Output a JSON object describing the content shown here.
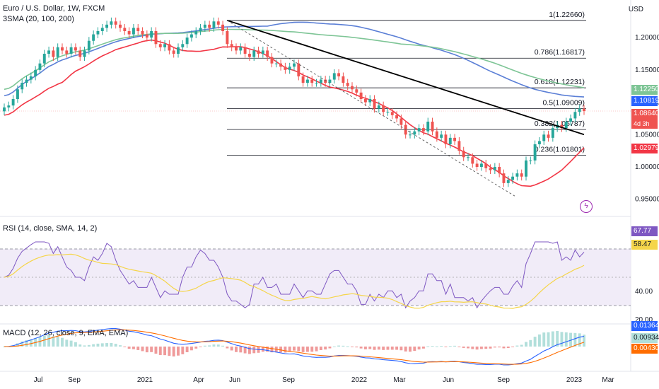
{
  "header": {
    "symbol_line": "Euro / U.S. Dollar, 1W, FXCM",
    "indicator_line": "3SMA (20, 100, 200)",
    "currency": "USD"
  },
  "rsi_legend": "RSI (14, close, SMA, 14, 2)",
  "macd_legend": "MACD (12, 26, close, 9, EMA, EMA)",
  "colors": {
    "up": "#26a69a",
    "down": "#ef5350",
    "sma20": "#f23645",
    "sma100": "#5b7fd6",
    "sma200": "#7ec596",
    "rsi": "#7e57c2",
    "rsi_ma": "#f5d54a",
    "macd": "#2962ff",
    "signal": "#ff6d00",
    "trendline": "#000000"
  },
  "chart_data": [
    {
      "type": "candlestick",
      "title": "Euro / U.S. Dollar, 1W, FXCM",
      "ylabel": "USD",
      "ylim": [
        0.93,
        1.245
      ],
      "y_ticks": [
        "1.20000",
        "1.15000",
        "1.10000",
        "1.05000",
        "1.00000",
        "0.95000"
      ],
      "x_ticks": [
        "Jul",
        "Sep",
        "2021",
        "Apr",
        "Jun",
        "Sep",
        "2022",
        "Mar",
        "Jun",
        "Sep",
        "2023",
        "Mar"
      ],
      "close_series": [
        1.092,
        1.095,
        1.105,
        1.12,
        1.13,
        1.135,
        1.14,
        1.15,
        1.16,
        1.175,
        1.18,
        1.17,
        1.185,
        1.18,
        1.175,
        1.185,
        1.18,
        1.17,
        1.18,
        1.195,
        1.205,
        1.21,
        1.215,
        1.22,
        1.225,
        1.22,
        1.215,
        1.21,
        1.205,
        1.215,
        1.21,
        1.205,
        1.2,
        1.21,
        1.19,
        1.185,
        1.19,
        1.18,
        1.175,
        1.185,
        1.19,
        1.2,
        1.205,
        1.21,
        1.215,
        1.22,
        1.215,
        1.225,
        1.22,
        1.21,
        1.19,
        1.185,
        1.18,
        1.185,
        1.175,
        1.17,
        1.18,
        1.175,
        1.18,
        1.17,
        1.16,
        1.16,
        1.155,
        1.15,
        1.155,
        1.16,
        1.14,
        1.13,
        1.135,
        1.13,
        1.13,
        1.135,
        1.13,
        1.135,
        1.145,
        1.14,
        1.13,
        1.125,
        1.12,
        1.115,
        1.105,
        1.1,
        1.105,
        1.09,
        1.095,
        1.085,
        1.085,
        1.08,
        1.075,
        1.065,
        1.05,
        1.05,
        1.055,
        1.06,
        1.055,
        1.07,
        1.055,
        1.045,
        1.05,
        1.035,
        1.045,
        1.04,
        1.025,
        1.015,
        1.015,
        1.005,
        1.0,
        1.005,
        0.998,
        0.995,
        1.0,
        0.99,
        0.975,
        0.98,
        0.985,
        0.99,
        0.985,
        1.01,
        1.01,
        1.035,
        1.04,
        1.05,
        1.045,
        1.06,
        1.065,
        1.06,
        1.07,
        1.075,
        1.085,
        1.09,
        1.0864
      ],
      "sma": [
        {
          "name": "SMA 20",
          "start": 1.08,
          "end": 1.02979
        },
        {
          "name": "SMA 100",
          "start": 1.11,
          "end": 1.10819
        },
        {
          "name": "SMA 200",
          "start": 1.12,
          "end": 1.1225
        }
      ],
      "fibonacci": [
        {
          "label": "1(1.22660)",
          "value": 1.2266
        },
        {
          "label": "0.786(1.16817)",
          "value": 1.16817
        },
        {
          "label": "0.618(1.12231)",
          "value": 1.12231
        },
        {
          "label": "0.5(1.09009)",
          "value": 1.09009
        },
        {
          "label": "0.382(1.05787)",
          "value": 1.05787
        },
        {
          "label": "0.236(1.01801)",
          "value": 1.01801
        }
      ],
      "price_labels": [
        {
          "text": "1.12250",
          "color": "#7ec596"
        },
        {
          "text": "1.10819",
          "color": "#2962ff"
        },
        {
          "text": "1.08640",
          "color": "#ef5350"
        },
        {
          "text": "4d 3h",
          "color": "#ef5350"
        },
        {
          "text": "1.02979",
          "color": "#f23645"
        }
      ]
    },
    {
      "type": "line",
      "title": "RSI (14, close, SMA, 14, 2)",
      "ylim": [
        20,
        90
      ],
      "y_ticks": [
        "40.00",
        "20.00"
      ],
      "levels": [
        70,
        50,
        30
      ],
      "series": [
        {
          "name": "RSI",
          "last": 67.77
        },
        {
          "name": "RSI-based MA",
          "last": 58.47
        }
      ],
      "price_labels": [
        {
          "text": "67.77",
          "color": "#7e57c2"
        },
        {
          "text": "58.47",
          "color": "#f5d54a"
        }
      ]
    },
    {
      "type": "bar",
      "title": "MACD (12, 26, close, 9, EMA, EMA)",
      "price_labels": [
        {
          "text": "0.01364",
          "color": "#2962ff"
        },
        {
          "text": "0.00934",
          "color": "#b2dfdb"
        },
        {
          "text": "0.00430",
          "color": "#ff6d00"
        }
      ],
      "values_last": {
        "macd": 0.01364,
        "histogram": 0.00934,
        "signal": 0.0043
      }
    }
  ]
}
